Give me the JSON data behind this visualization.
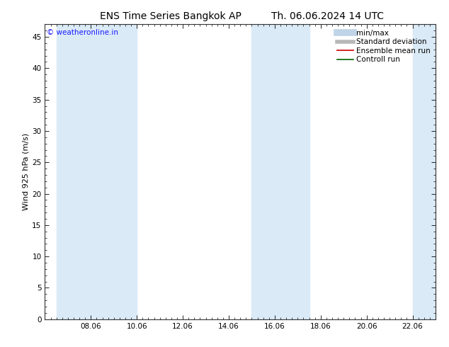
{
  "title_left": "ENS Time Series Bangkok AP",
  "title_right": "Th. 06.06.2024 14 UTC",
  "ylabel": "Wind 925 hPa (m/s)",
  "watermark": "© weatheronline.in",
  "watermark_color": "#1a1aff",
  "ylim": [
    0,
    47
  ],
  "yticks": [
    0,
    5,
    10,
    15,
    20,
    25,
    30,
    35,
    40,
    45
  ],
  "xtick_labels": [
    "08.06",
    "10.06",
    "12.06",
    "14.06",
    "16.06",
    "18.06",
    "20.06",
    "22.06"
  ],
  "xtick_positions": [
    2,
    4,
    6,
    8,
    10,
    12,
    14,
    16
  ],
  "xmin": 0,
  "xmax": 17.0,
  "shaded_bands": [
    {
      "xstart": 0.5,
      "xend": 2.0,
      "color": "#daeaf7"
    },
    {
      "xstart": 2.0,
      "xend": 4.0,
      "color": "#daeaf7"
    },
    {
      "xstart": 9.0,
      "xend": 10.0,
      "color": "#daeaf7"
    },
    {
      "xstart": 10.0,
      "xend": 11.5,
      "color": "#daeaf7"
    },
    {
      "xstart": 16.0,
      "xend": 17.0,
      "color": "#daeaf7"
    }
  ],
  "legend_entries": [
    {
      "label": "min/max",
      "color": "#c0d4e8",
      "linestyle": "-",
      "linewidth": 7
    },
    {
      "label": "Standard deviation",
      "color": "#b8b8b8",
      "linestyle": "-",
      "linewidth": 4
    },
    {
      "label": "Ensemble mean run",
      "color": "#cc0000",
      "linestyle": "-",
      "linewidth": 1.2
    },
    {
      "label": "Controll run",
      "color": "#006600",
      "linestyle": "-",
      "linewidth": 1.2
    }
  ],
  "background_color": "#ffffff",
  "plot_bg_color": "#ffffff",
  "title_fontsize": 10,
  "axis_label_fontsize": 8,
  "tick_fontsize": 7.5,
  "watermark_fontsize": 7.5,
  "legend_fontsize": 7.5
}
